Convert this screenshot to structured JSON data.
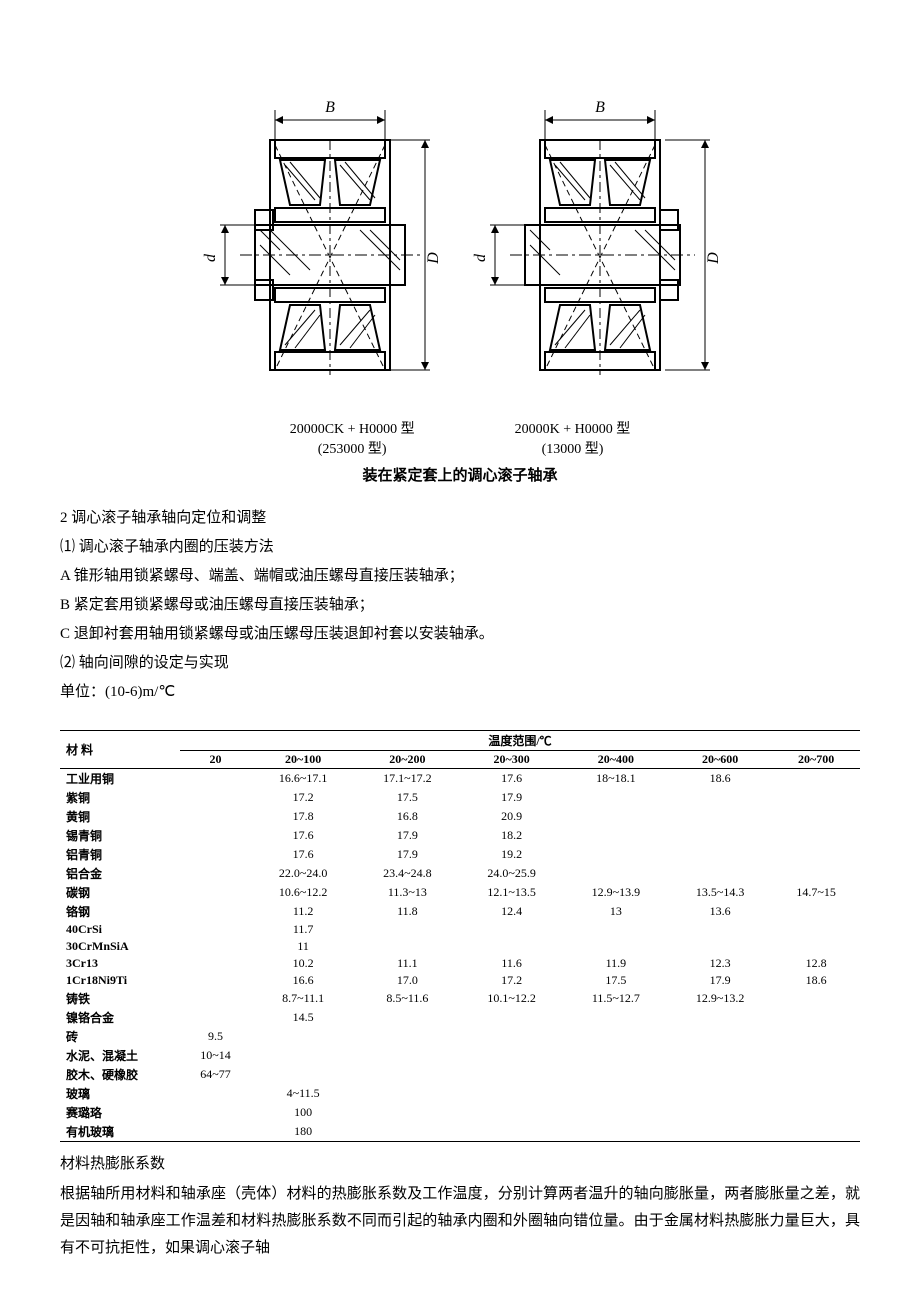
{
  "figure": {
    "dim_B": "B",
    "dim_d": "d",
    "dim_D": "D",
    "left": {
      "line1": "20000CK + H0000 型",
      "line2": "(253000 型)"
    },
    "right": {
      "line1": "20000K + H0000 型",
      "line2": "(13000 型)"
    },
    "caption": "装在紧定套上的调心滚子轴承"
  },
  "text": {
    "l1": "2 调心滚子轴承轴向定位和调整",
    "l2": "⑴ 调心滚子轴承内圈的压装方法",
    "l3": "A 锥形轴用锁紧螺母、端盖、端帽或油压螺母直接压装轴承；",
    "l4": "B 紧定套用锁紧螺母或油压螺母直接压装轴承；",
    "l5": "C 退卸衬套用轴用锁紧螺母或油压螺母压装退卸衬套以安装轴承。",
    "l6": "⑵  轴向间隙的设定与实现",
    "l7": "单位：(10-6)m/℃"
  },
  "table": {
    "header_material": "材 料",
    "header_temp": "温度范围/℃",
    "columns": [
      "20",
      "20~100",
      "20~200",
      "20~300",
      "20~400",
      "20~600",
      "20~700"
    ],
    "rows": [
      {
        "m": "工业用铜",
        "v": [
          "",
          "16.6~17.1",
          "17.1~17.2",
          "17.6",
          "18~18.1",
          "18.6",
          ""
        ]
      },
      {
        "m": "紫铜",
        "v": [
          "",
          "17.2",
          "17.5",
          "17.9",
          "",
          "",
          ""
        ]
      },
      {
        "m": "黄铜",
        "v": [
          "",
          "17.8",
          "16.8",
          "20.9",
          "",
          "",
          ""
        ]
      },
      {
        "m": "锡青铜",
        "v": [
          "",
          "17.6",
          "17.9",
          "18.2",
          "",
          "",
          ""
        ]
      },
      {
        "m": "铝青铜",
        "v": [
          "",
          "17.6",
          "17.9",
          "19.2",
          "",
          "",
          ""
        ]
      },
      {
        "m": "铝合金",
        "v": [
          "",
          "22.0~24.0",
          "23.4~24.8",
          "24.0~25.9",
          "",
          "",
          ""
        ]
      },
      {
        "m": "碳钢",
        "v": [
          "",
          "10.6~12.2",
          "11.3~13",
          "12.1~13.5",
          "12.9~13.9",
          "13.5~14.3",
          "14.7~15"
        ]
      },
      {
        "m": "铬钢",
        "v": [
          "",
          "11.2",
          "11.8",
          "12.4",
          "13",
          "13.6",
          ""
        ]
      },
      {
        "m": "40CrSi",
        "v": [
          "",
          "11.7",
          "",
          "",
          "",
          "",
          ""
        ]
      },
      {
        "m": "30CrMnSiA",
        "v": [
          "",
          "11",
          "",
          "",
          "",
          "",
          ""
        ]
      },
      {
        "m": "3Cr13",
        "v": [
          "",
          "10.2",
          "11.1",
          "11.6",
          "11.9",
          "12.3",
          "12.8"
        ]
      },
      {
        "m": "1Cr18Ni9Ti",
        "v": [
          "",
          "16.6",
          "17.0",
          "17.2",
          "17.5",
          "17.9",
          "18.6"
        ]
      },
      {
        "m": "铸铁",
        "v": [
          "",
          "8.7~11.1",
          "8.5~11.6",
          "10.1~12.2",
          "11.5~12.7",
          "12.9~13.2",
          ""
        ]
      },
      {
        "m": "镍铬合金",
        "v": [
          "",
          "14.5",
          "",
          "",
          "",
          "",
          ""
        ]
      },
      {
        "m": "砖",
        "v": [
          "9.5",
          "",
          "",
          "",
          "",
          "",
          ""
        ]
      },
      {
        "m": "水泥、混凝土",
        "v": [
          "10~14",
          "",
          "",
          "",
          "",
          "",
          ""
        ]
      },
      {
        "m": "胶木、硬橡胶",
        "v": [
          "64~77",
          "",
          "",
          "",
          "",
          "",
          ""
        ]
      },
      {
        "m": "玻璃",
        "v": [
          "",
          "4~11.5",
          "",
          "",
          "",
          "",
          ""
        ]
      },
      {
        "m": "赛璐珞",
        "v": [
          "",
          "100",
          "",
          "",
          "",
          "",
          ""
        ]
      },
      {
        "m": "有机玻璃",
        "v": [
          "",
          "180",
          "",
          "",
          "",
          "",
          ""
        ]
      }
    ]
  },
  "table_caption": "材料热膨胀系数",
  "paragraph": "根据轴所用材料和轴承座（壳体）材料的热膨胀系数及工作温度，分别计算两者温升的轴向膨胀量，两者膨胀量之差，就是因轴和轴承座工作温差和材料热膨胀系数不同而引起的轴承内圈和外圈轴向错位量。由于金属材料热膨胀力量巨大，具有不可抗拒性，如果调心滚子轴"
}
